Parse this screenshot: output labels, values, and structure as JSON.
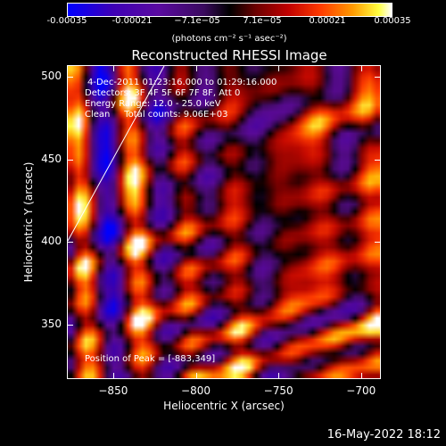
{
  "colorbar": {
    "ticks": [
      "-0.00035",
      "-0.00021",
      "−7.1e−05",
      "7.1e−05",
      "0.00021",
      "0.00035"
    ],
    "units": "(photons cm⁻² s⁻¹ asec⁻²)"
  },
  "chart_data": {
    "type": "heatmap",
    "title": "Reconstructed RHESSI Image",
    "xlabel": "Heliocentric X (arcsec)",
    "ylabel": "Heliocentric Y (arcsec)",
    "xlim": [
      -878,
      -688
    ],
    "ylim": [
      317,
      507
    ],
    "xticks": [
      -850,
      -800,
      -750,
      -700
    ],
    "xtick_labels": [
      "−850",
      "−800",
      "−750",
      "−700"
    ],
    "yticks": [
      350,
      400,
      450,
      500
    ],
    "ytick_labels": [
      "350",
      "400",
      "450",
      "500"
    ],
    "zlim": [
      -0.00035,
      0.00035
    ],
    "peak": [
      -883,
      349
    ],
    "annotations": [
      "4-Dec-2011 01:23:16.000 to 01:29:16.000",
      "Detectors: 3F 4F 5F 6F 7F 8F, Att 0",
      "Energy Range: 12.0 - 25.0 keV",
      "Clean     Total counts: 9.06E+03",
      "Position of Peak = [-883,349]"
    ]
  },
  "footer": {
    "date": "16-May-2022 18:12"
  }
}
